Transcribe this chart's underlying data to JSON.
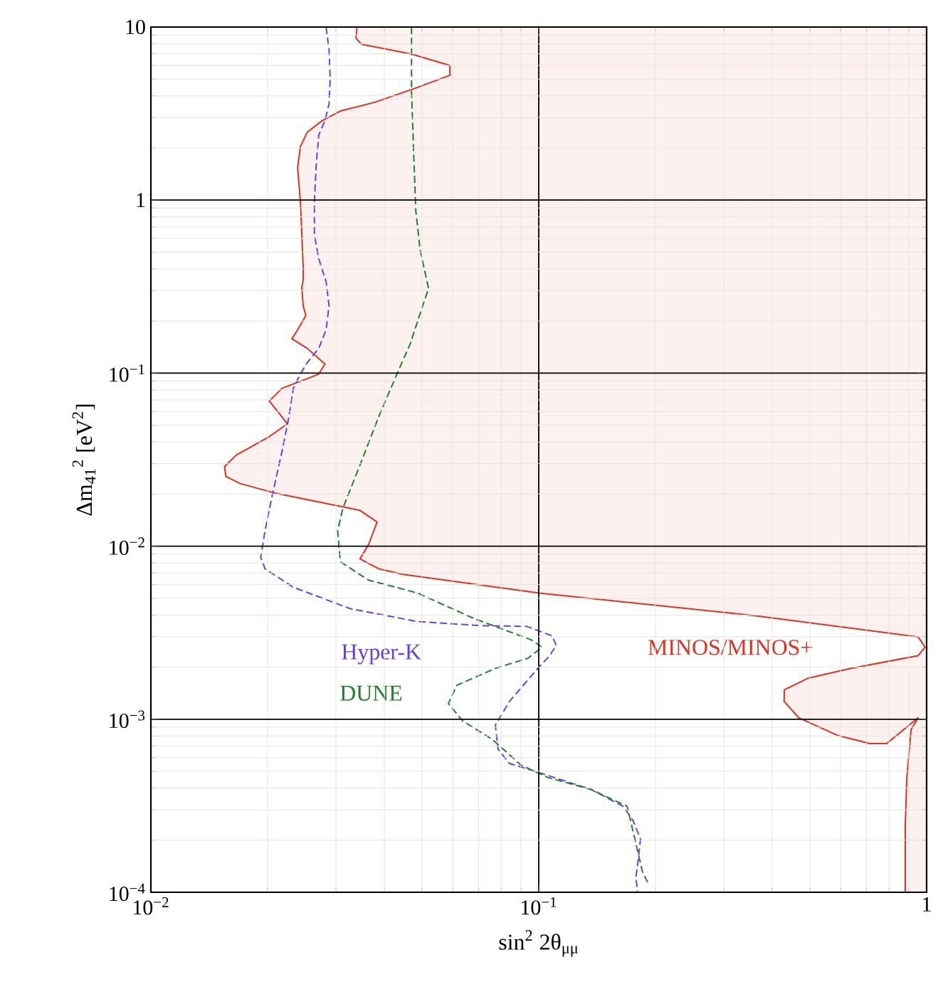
{
  "chart_data": {
    "type": "line",
    "xlabel": "sin$^{2}$ 2θ$_{μμ}$",
    "ylabel": "Δm$_{41}$$^{2}$ [eV$^{2}$]",
    "log": "xy",
    "grid": true,
    "marker": "none",
    "xlim": [
      0.01,
      1
    ],
    "ylim": [
      0.0001,
      10
    ],
    "xticks": [
      {
        "value": 0.01,
        "label": "10$^{−2}$"
      },
      {
        "value": 0.1,
        "label": "10$^{−1}$"
      },
      1
    ],
    "yticks": [
      {
        "value": 0.0001,
        "label": "10$^{−4}$"
      },
      {
        "value": 0.001,
        "label": "10$^{−3}$"
      },
      {
        "value": 0.01,
        "label": "10$^{−2}$"
      },
      {
        "value": 0.1,
        "label": "10$^{−1}$"
      },
      1,
      10
    ],
    "series": [
      {
        "type": "area",
        "name": "MINOS/MINOS+",
        "color": "#e0301e",
        "line_style": "solid",
        "x": [
          0.034,
          0.0338,
          0.0349,
          0.047,
          0.059,
          0.059,
          0.047,
          0.0377,
          0.0308,
          0.0276,
          0.0253,
          0.0243,
          0.0239,
          0.0243,
          0.0245,
          0.0247,
          0.0247,
          0.0245,
          0.0247,
          0.0251,
          0.0239,
          0.0231,
          0.0253,
          0.0281,
          0.0271,
          0.026,
          0.0218,
          0.0202,
          0.0225,
          0.0202,
          0.0166,
          0.0155,
          0.0156,
          0.017,
          0.021,
          0.0346,
          0.0383,
          0.0371,
          0.0364,
          0.0346,
          0.0387,
          0.0447,
          0.0995,
          0.363,
          0.951,
          0.991,
          0.951,
          0.639,
          0.496,
          0.43,
          0.429,
          0.468,
          0.587,
          0.713,
          0.789,
          0.951,
          0.912,
          0.889,
          0.881,
          0.881,
          1,
          1
        ],
        "values": [
          10,
          8.6,
          7.96,
          6.98,
          6.0,
          5.26,
          4.35,
          3.67,
          3.27,
          2.87,
          2.47,
          2.04,
          1.54,
          0.975,
          0.631,
          0.408,
          0.344,
          0.313,
          0.245,
          0.215,
          0.178,
          0.158,
          0.139,
          0.113,
          0.0989,
          0.0952,
          0.0818,
          0.069,
          0.051,
          0.043,
          0.0336,
          0.0289,
          0.0253,
          0.023,
          0.0202,
          0.0161,
          0.0138,
          0.0114,
          0.0102,
          0.00845,
          0.0074,
          0.00687,
          0.00537,
          0.00396,
          0.00299,
          0.00261,
          0.00233,
          0.00197,
          0.00173,
          0.00148,
          0.00127,
          0.00102,
          0.000809,
          0.000723,
          0.000723,
          0.00102,
          0.000873,
          0.000459,
          0.000245,
          0.0001,
          0.0001,
          10
        ]
      },
      {
        "name": "Hyper-K",
        "color": "#6a3fe0",
        "line_style": "dashed",
        "x": [
          0.0283,
          0.0288,
          0.029,
          0.0288,
          0.0281,
          0.0271,
          0.0267,
          0.0264,
          0.0264,
          0.0271,
          0.0283,
          0.0288,
          0.0283,
          0.0271,
          0.0253,
          0.0243,
          0.0233,
          0.0227,
          0.0218,
          0.0205,
          0.0197,
          0.0192,
          0.0197,
          0.0233,
          0.0326,
          0.0486,
          0.0716,
          0.0931,
          0.108,
          0.111,
          0.106,
          0.0995,
          0.0841,
          0.0773,
          0.0786,
          0.0841,
          0.0995,
          0.136,
          0.165,
          0.175,
          0.183,
          0.18,
          0.178,
          0.18
        ],
        "values": [
          10,
          7.39,
          5.06,
          3.6,
          2.87,
          2.38,
          1.63,
          0.975,
          0.631,
          0.458,
          0.338,
          0.245,
          0.178,
          0.139,
          0.115,
          0.0989,
          0.0818,
          0.0561,
          0.0356,
          0.0191,
          0.0123,
          0.00861,
          0.0074,
          0.00579,
          0.00436,
          0.00367,
          0.00347,
          0.00344,
          0.00304,
          0.00267,
          0.00229,
          0.00197,
          0.00127,
          0.000924,
          0.00067,
          0.000555,
          0.000494,
          0.000394,
          0.000314,
          0.00026,
          0.000203,
          0.000147,
          0.000122,
          0.0001
        ]
      },
      {
        "name": "DUNE",
        "color": "#1f7f2a",
        "line_style": "dashed",
        "x": [
          0.047,
          0.047,
          0.0477,
          0.0482,
          0.0494,
          0.052,
          0.0498,
          0.0466,
          0.0431,
          0.0387,
          0.0346,
          0.0313,
          0.0303,
          0.0308,
          0.0364,
          0.0486,
          0.0681,
          0.0955,
          0.102,
          0.0938,
          0.0773,
          0.0615,
          0.0585,
          0.0637,
          0.076,
          0.09,
          0.106,
          0.136,
          0.169,
          0.177,
          0.185,
          0.192
        ],
        "values": [
          10,
          4.19,
          1.63,
          0.871,
          0.523,
          0.308,
          0.232,
          0.147,
          0.0989,
          0.0561,
          0.0294,
          0.0167,
          0.0123,
          0.00813,
          0.00637,
          0.00537,
          0.00382,
          0.00288,
          0.00261,
          0.00225,
          0.00197,
          0.00157,
          0.00123,
          0.000977,
          0.000764,
          0.000543,
          0.000459,
          0.000394,
          0.000314,
          0.000203,
          0.000132,
          0.000111
        ]
      }
    ]
  }
}
